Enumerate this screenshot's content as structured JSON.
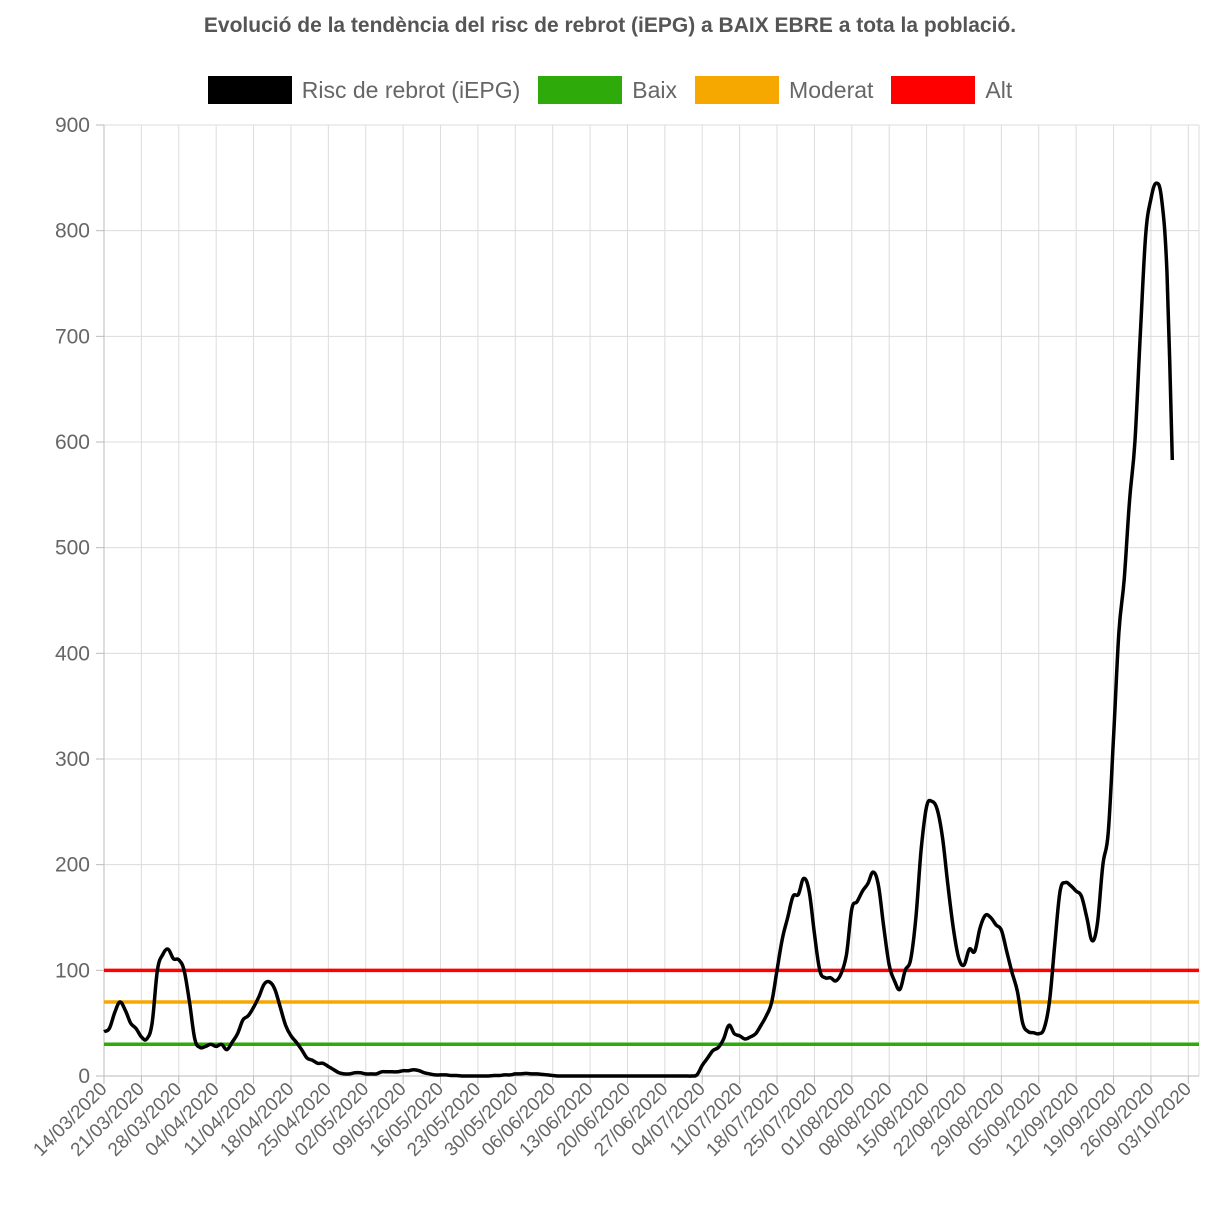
{
  "chart_data": {
    "type": "line",
    "title": "Evolució de la tendència del risc de rebrot (iEPG) a BAIX EBRE a tota la població.",
    "ylim": [
      0,
      900
    ],
    "yticks": [
      0,
      100,
      200,
      300,
      400,
      500,
      600,
      700,
      800,
      900
    ],
    "grid": true,
    "legend_position": "top",
    "x_range": [
      "14/03/2020",
      "05/10/2020"
    ],
    "x_tick_labels": [
      "14/03/2020",
      "21/03/2020",
      "28/03/2020",
      "04/04/2020",
      "11/04/2020",
      "18/04/2020",
      "25/04/2020",
      "02/05/2020",
      "09/05/2020",
      "16/05/2020",
      "23/05/2020",
      "30/05/2020",
      "06/06/2020",
      "13/06/2020",
      "20/06/2020",
      "27/06/2020",
      "04/07/2020",
      "11/07/2020",
      "18/07/2020",
      "25/07/2020",
      "01/08/2020",
      "08/08/2020",
      "15/08/2020",
      "22/08/2020",
      "29/08/2020",
      "05/09/2020",
      "12/09/2020",
      "19/09/2020",
      "26/09/2020",
      "03/10/2020"
    ],
    "series": [
      {
        "name": "Risc de rebrot (iEPG)",
        "color": "#000000",
        "points": [
          [
            "14/03/2020",
            42
          ],
          [
            "15/03/2020",
            45
          ],
          [
            "16/03/2020",
            60
          ],
          [
            "17/03/2020",
            70
          ],
          [
            "18/03/2020",
            62
          ],
          [
            "19/03/2020",
            50
          ],
          [
            "20/03/2020",
            45
          ],
          [
            "21/03/2020",
            37
          ],
          [
            "22/03/2020",
            35
          ],
          [
            "23/03/2020",
            50
          ],
          [
            "24/03/2020",
            100
          ],
          [
            "25/03/2020",
            115
          ],
          [
            "26/03/2020",
            120
          ],
          [
            "27/03/2020",
            111
          ],
          [
            "28/03/2020",
            110
          ],
          [
            "29/03/2020",
            100
          ],
          [
            "30/03/2020",
            70
          ],
          [
            "31/03/2020",
            35
          ],
          [
            "01/04/2020",
            27
          ],
          [
            "02/04/2020",
            28
          ],
          [
            "03/04/2020",
            30
          ],
          [
            "04/04/2020",
            28
          ],
          [
            "05/04/2020",
            30
          ],
          [
            "06/04/2020",
            25
          ],
          [
            "07/04/2020",
            32
          ],
          [
            "08/04/2020",
            40
          ],
          [
            "09/04/2020",
            53
          ],
          [
            "10/04/2020",
            57
          ],
          [
            "11/04/2020",
            65
          ],
          [
            "12/04/2020",
            75
          ],
          [
            "13/04/2020",
            87
          ],
          [
            "14/04/2020",
            89
          ],
          [
            "15/04/2020",
            82
          ],
          [
            "16/04/2020",
            65
          ],
          [
            "17/04/2020",
            48
          ],
          [
            "18/04/2020",
            38
          ],
          [
            "19/04/2020",
            32
          ],
          [
            "20/04/2020",
            25
          ],
          [
            "21/04/2020",
            17
          ],
          [
            "22/04/2020",
            15
          ],
          [
            "23/04/2020",
            12
          ],
          [
            "24/04/2020",
            12
          ],
          [
            "25/04/2020",
            9
          ],
          [
            "26/04/2020",
            6
          ],
          [
            "27/04/2020",
            3
          ],
          [
            "28/04/2020",
            2
          ],
          [
            "29/04/2020",
            2
          ],
          [
            "30/04/2020",
            3
          ],
          [
            "01/05/2020",
            3
          ],
          [
            "02/05/2020",
            2
          ],
          [
            "03/05/2020",
            2
          ],
          [
            "04/05/2020",
            2
          ],
          [
            "05/05/2020",
            4
          ],
          [
            "06/05/2020",
            4
          ],
          [
            "07/05/2020",
            4
          ],
          [
            "08/05/2020",
            4
          ],
          [
            "09/05/2020",
            5
          ],
          [
            "10/05/2020",
            5
          ],
          [
            "11/05/2020",
            6
          ],
          [
            "12/05/2020",
            5
          ],
          [
            "13/05/2020",
            3
          ],
          [
            "14/05/2020",
            2
          ],
          [
            "15/05/2020",
            1
          ],
          [
            "16/05/2020",
            1
          ],
          [
            "17/05/2020",
            1
          ],
          [
            "18/05/2020",
            0.5
          ],
          [
            "19/05/2020",
            0.5
          ],
          [
            "20/05/2020",
            0
          ],
          [
            "21/05/2020",
            0
          ],
          [
            "22/05/2020",
            0
          ],
          [
            "23/05/2020",
            0
          ],
          [
            "24/05/2020",
            0
          ],
          [
            "25/05/2020",
            0
          ],
          [
            "26/05/2020",
            0.5
          ],
          [
            "27/05/2020",
            0.5
          ],
          [
            "28/05/2020",
            1
          ],
          [
            "29/05/2020",
            1
          ],
          [
            "30/05/2020",
            2
          ],
          [
            "31/05/2020",
            2
          ],
          [
            "01/06/2020",
            2.5
          ],
          [
            "02/06/2020",
            2
          ],
          [
            "03/06/2020",
            2
          ],
          [
            "04/06/2020",
            1.5
          ],
          [
            "05/06/2020",
            1
          ],
          [
            "06/06/2020",
            0.5
          ],
          [
            "07/06/2020",
            0
          ],
          [
            "08/06/2020",
            0
          ],
          [
            "09/06/2020",
            0
          ],
          [
            "10/06/2020",
            0
          ],
          [
            "11/06/2020",
            0
          ],
          [
            "12/06/2020",
            0
          ],
          [
            "13/06/2020",
            0
          ],
          [
            "14/06/2020",
            0
          ],
          [
            "15/06/2020",
            0
          ],
          [
            "16/06/2020",
            0
          ],
          [
            "17/06/2020",
            0
          ],
          [
            "18/06/2020",
            0
          ],
          [
            "19/06/2020",
            0
          ],
          [
            "20/06/2020",
            0
          ],
          [
            "21/06/2020",
            0
          ],
          [
            "22/06/2020",
            0
          ],
          [
            "23/06/2020",
            0
          ],
          [
            "24/06/2020",
            0
          ],
          [
            "25/06/2020",
            0
          ],
          [
            "26/06/2020",
            0
          ],
          [
            "27/06/2020",
            0
          ],
          [
            "28/06/2020",
            0
          ],
          [
            "29/06/2020",
            0
          ],
          [
            "30/06/2020",
            0
          ],
          [
            "01/07/2020",
            0
          ],
          [
            "02/07/2020",
            0
          ],
          [
            "03/07/2020",
            1
          ],
          [
            "04/07/2020",
            10
          ],
          [
            "05/07/2020",
            17
          ],
          [
            "06/07/2020",
            24
          ],
          [
            "07/07/2020",
            27
          ],
          [
            "08/07/2020",
            35
          ],
          [
            "09/07/2020",
            48
          ],
          [
            "10/07/2020",
            40
          ],
          [
            "11/07/2020",
            38
          ],
          [
            "12/07/2020",
            35
          ],
          [
            "13/07/2020",
            37
          ],
          [
            "14/07/2020",
            40
          ],
          [
            "15/07/2020",
            48
          ],
          [
            "16/07/2020",
            57
          ],
          [
            "17/07/2020",
            70
          ],
          [
            "18/07/2020",
            100
          ],
          [
            "19/07/2020",
            130
          ],
          [
            "20/07/2020",
            150
          ],
          [
            "21/07/2020",
            170
          ],
          [
            "22/07/2020",
            172
          ],
          [
            "23/07/2020",
            187
          ],
          [
            "24/07/2020",
            175
          ],
          [
            "25/07/2020",
            135
          ],
          [
            "26/07/2020",
            100
          ],
          [
            "27/07/2020",
            93
          ],
          [
            "28/07/2020",
            93
          ],
          [
            "29/07/2020",
            90
          ],
          [
            "30/07/2020",
            97
          ],
          [
            "31/07/2020",
            115
          ],
          [
            "01/08/2020",
            158
          ],
          [
            "02/08/2020",
            165
          ],
          [
            "03/08/2020",
            175
          ],
          [
            "04/08/2020",
            182
          ],
          [
            "05/08/2020",
            193
          ],
          [
            "06/08/2020",
            180
          ],
          [
            "07/08/2020",
            140
          ],
          [
            "08/08/2020",
            105
          ],
          [
            "09/08/2020",
            90
          ],
          [
            "10/08/2020",
            82
          ],
          [
            "11/08/2020",
            100
          ],
          [
            "12/08/2020",
            110
          ],
          [
            "13/08/2020",
            150
          ],
          [
            "14/08/2020",
            215
          ],
          [
            "15/08/2020",
            255
          ],
          [
            "16/08/2020",
            260
          ],
          [
            "17/08/2020",
            252
          ],
          [
            "18/08/2020",
            225
          ],
          [
            "19/08/2020",
            180
          ],
          [
            "20/08/2020",
            140
          ],
          [
            "21/08/2020",
            112
          ],
          [
            "22/08/2020",
            105
          ],
          [
            "23/08/2020",
            120
          ],
          [
            "24/08/2020",
            118
          ],
          [
            "25/08/2020",
            140
          ],
          [
            "26/08/2020",
            152
          ],
          [
            "27/08/2020",
            150
          ],
          [
            "28/08/2020",
            143
          ],
          [
            "29/08/2020",
            138
          ],
          [
            "30/08/2020",
            118
          ],
          [
            "31/08/2020",
            98
          ],
          [
            "01/09/2020",
            80
          ],
          [
            "02/09/2020",
            50
          ],
          [
            "03/09/2020",
            42
          ],
          [
            "04/09/2020",
            41
          ],
          [
            "05/09/2020",
            40
          ],
          [
            "06/09/2020",
            45
          ],
          [
            "07/09/2020",
            70
          ],
          [
            "08/09/2020",
            125
          ],
          [
            "09/09/2020",
            175
          ],
          [
            "10/09/2020",
            183
          ],
          [
            "11/09/2020",
            180
          ],
          [
            "12/09/2020",
            175
          ],
          [
            "13/09/2020",
            170
          ],
          [
            "14/09/2020",
            150
          ],
          [
            "15/09/2020",
            128
          ],
          [
            "16/09/2020",
            145
          ],
          [
            "17/09/2020",
            200
          ],
          [
            "18/09/2020",
            230
          ],
          [
            "19/09/2020",
            320
          ],
          [
            "20/09/2020",
            420
          ],
          [
            "21/09/2020",
            470
          ],
          [
            "22/09/2020",
            545
          ],
          [
            "23/09/2020",
            600
          ],
          [
            "24/09/2020",
            700
          ],
          [
            "25/09/2020",
            795
          ],
          [
            "26/09/2020",
            830
          ],
          [
            "27/09/2020",
            845
          ],
          [
            "28/09/2020",
            830
          ],
          [
            "29/09/2020",
            760
          ],
          [
            "30/09/2020",
            583
          ]
        ]
      },
      {
        "name": "Baix",
        "color": "#2eaa0b",
        "constant": 30
      },
      {
        "name": "Moderat",
        "color": "#f7a800",
        "constant": 70
      },
      {
        "name": "Alt",
        "color": "#ff0000",
        "constant": 100
      }
    ]
  }
}
